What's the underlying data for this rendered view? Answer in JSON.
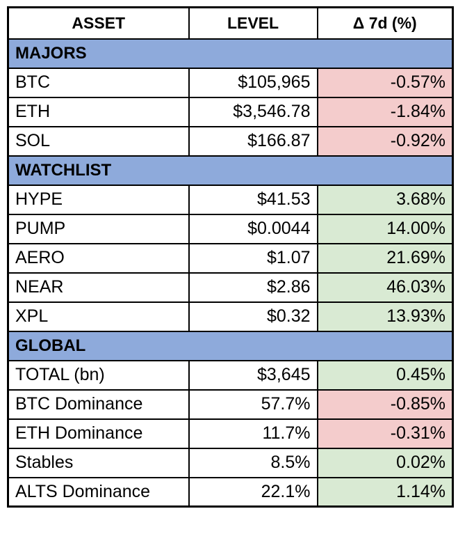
{
  "colors": {
    "section_bg": "#8EAADB",
    "positive_bg": "#D9EAD3",
    "negative_bg": "#F4CCCC",
    "border": "#000000",
    "background": "#FFFFFF"
  },
  "chart_data": {
    "type": "table",
    "columns": [
      "ASSET",
      "LEVEL",
      "Δ 7d (%)"
    ],
    "sections": [
      {
        "name": "MAJORS",
        "rows": [
          {
            "asset": "BTC",
            "level": "$105,965",
            "delta": "-0.57%",
            "trend": "down"
          },
          {
            "asset": "ETH",
            "level": "$3,546.78",
            "delta": "-1.84%",
            "trend": "down"
          },
          {
            "asset": "SOL",
            "level": "$166.87",
            "delta": "-0.92%",
            "trend": "down"
          }
        ]
      },
      {
        "name": "WATCHLIST",
        "rows": [
          {
            "asset": "HYPE",
            "level": "$41.53",
            "delta": "3.68%",
            "trend": "up"
          },
          {
            "asset": "PUMP",
            "level": "$0.0044",
            "delta": "14.00%",
            "trend": "up"
          },
          {
            "asset": "AERO",
            "level": "$1.07",
            "delta": "21.69%",
            "trend": "up"
          },
          {
            "asset": "NEAR",
            "level": "$2.86",
            "delta": "46.03%",
            "trend": "up"
          },
          {
            "asset": "XPL",
            "level": "$0.32",
            "delta": "13.93%",
            "trend": "up"
          }
        ]
      },
      {
        "name": "GLOBAL",
        "rows": [
          {
            "asset": "TOTAL (bn)",
            "level": "$3,645",
            "delta": "0.45%",
            "trend": "up"
          },
          {
            "asset": "BTC Dominance",
            "level": "57.7%",
            "delta": "-0.85%",
            "trend": "down"
          },
          {
            "asset": "ETH Dominance",
            "level": "11.7%",
            "delta": "-0.31%",
            "trend": "down"
          },
          {
            "asset": "Stables",
            "level": "8.5%",
            "delta": "0.02%",
            "trend": "up"
          },
          {
            "asset": "ALTS Dominance",
            "level": "22.1%",
            "delta": "1.14%",
            "trend": "up"
          }
        ]
      }
    ]
  }
}
